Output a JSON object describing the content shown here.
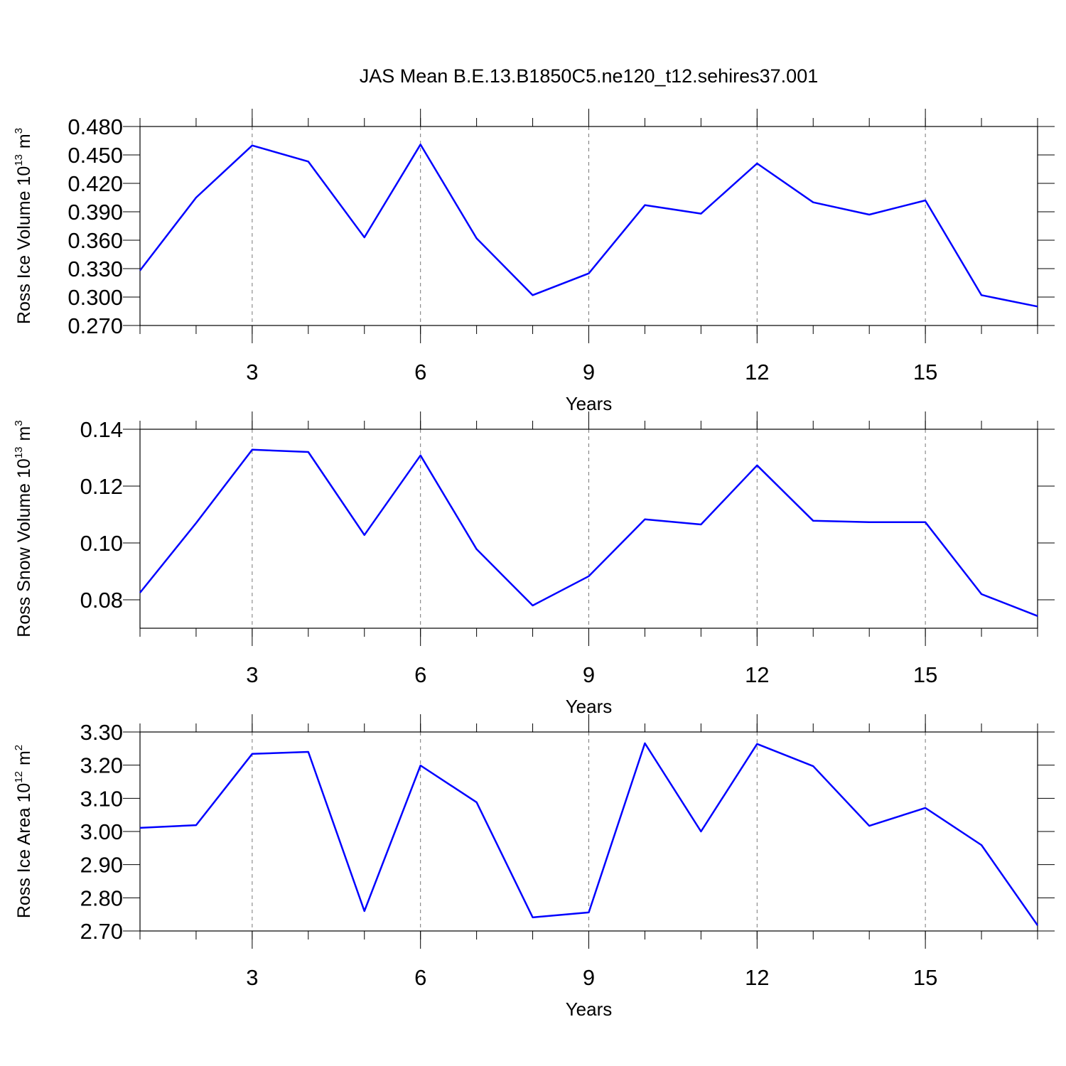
{
  "chart_data": [
    {
      "type": "line",
      "title": "JAS Mean B.E.13.B1850C5.ne120_t12.sehires37.001",
      "x": [
        1,
        2,
        3,
        4,
        5,
        6,
        7,
        8,
        9,
        10,
        11,
        12,
        13,
        14,
        15,
        16,
        17
      ],
      "values": [
        0.328,
        0.405,
        0.46,
        0.443,
        0.363,
        0.461,
        0.362,
        0.302,
        0.325,
        0.397,
        0.388,
        0.441,
        0.4,
        0.387,
        0.402,
        0.302,
        0.29
      ],
      "color": "#0000ff",
      "xlim": [
        1,
        17
      ],
      "xticks": [
        3,
        6,
        9,
        12,
        15
      ],
      "xminorticks": [
        1,
        2,
        3,
        4,
        5,
        6,
        7,
        8,
        9,
        10,
        11,
        12,
        13,
        14,
        15,
        16,
        17
      ],
      "ylim": [
        0.27,
        0.48
      ],
      "yticks": [
        {
          "value": 0.27,
          "label": "0.270"
        },
        {
          "value": 0.3,
          "label": "0.300"
        },
        {
          "value": 0.33,
          "label": "0.330"
        },
        {
          "value": 0.36,
          "label": "0.360"
        },
        {
          "value": 0.39,
          "label": "0.390"
        },
        {
          "value": 0.42,
          "label": "0.420"
        },
        {
          "value": 0.45,
          "label": "0.450"
        },
        {
          "value": 0.48,
          "label": "0.480"
        }
      ],
      "xlabel": "Years",
      "ylabel": [
        "Ross Ice Volume 10",
        "13",
        "m",
        "3"
      ],
      "xgrid": true
    },
    {
      "type": "line",
      "x": [
        1,
        2,
        3,
        4,
        5,
        6,
        7,
        8,
        9,
        10,
        11,
        12,
        13,
        14,
        15,
        16,
        17
      ],
      "values": [
        0.0825,
        0.107,
        0.1328,
        0.132,
        0.1028,
        0.1308,
        0.0978,
        0.078,
        0.0883,
        0.1083,
        0.1065,
        0.1273,
        0.1078,
        0.1073,
        0.1073,
        0.082,
        0.0743
      ],
      "color": "#0000ff",
      "xlim": [
        1,
        17
      ],
      "xticks": [
        3,
        6,
        9,
        12,
        15
      ],
      "xminorticks": [
        1,
        2,
        3,
        4,
        5,
        6,
        7,
        8,
        9,
        10,
        11,
        12,
        13,
        14,
        15,
        16,
        17
      ],
      "ylim": [
        0.07,
        0.14
      ],
      "yticks": [
        0.08,
        {
          "value": 0.1,
          "label": "0.10"
        },
        0.12,
        0.14
      ],
      "xlabel": "Years",
      "ylabel": [
        "Ross Snow Volume 10",
        "13",
        "m",
        "3"
      ],
      "xgrid": true
    },
    {
      "type": "line",
      "x": [
        1,
        2,
        3,
        4,
        5,
        6,
        7,
        8,
        9,
        10,
        11,
        12,
        13,
        14,
        15,
        16,
        17
      ],
      "values": [
        3.011,
        3.019,
        3.234,
        3.24,
        2.76,
        3.199,
        3.088,
        2.741,
        2.756,
        3.266,
        3.0,
        3.264,
        3.197,
        3.017,
        3.071,
        2.959,
        2.717
      ],
      "color": "#0000ff",
      "xlim": [
        1,
        17
      ],
      "xticks": [
        3,
        6,
        9,
        12,
        15
      ],
      "xminorticks": [
        1,
        2,
        3,
        4,
        5,
        6,
        7,
        8,
        9,
        10,
        11,
        12,
        13,
        14,
        15,
        16,
        17
      ],
      "ylim": [
        2.7,
        3.3
      ],
      "yticks": [
        {
          "value": 2.7,
          "label": "2.70"
        },
        {
          "value": 2.8,
          "label": "2.80"
        },
        {
          "value": 2.9,
          "label": "2.90"
        },
        {
          "value": 3.0,
          "label": "3.00"
        },
        {
          "value": 3.1,
          "label": "3.10"
        },
        {
          "value": 3.2,
          "label": "3.20"
        },
        {
          "value": 3.3,
          "label": "3.30"
        }
      ],
      "xlabel": "Years",
      "ylabel": [
        "Ross Ice Area 10",
        "12",
        "m",
        "2"
      ],
      "xgrid": true
    }
  ]
}
